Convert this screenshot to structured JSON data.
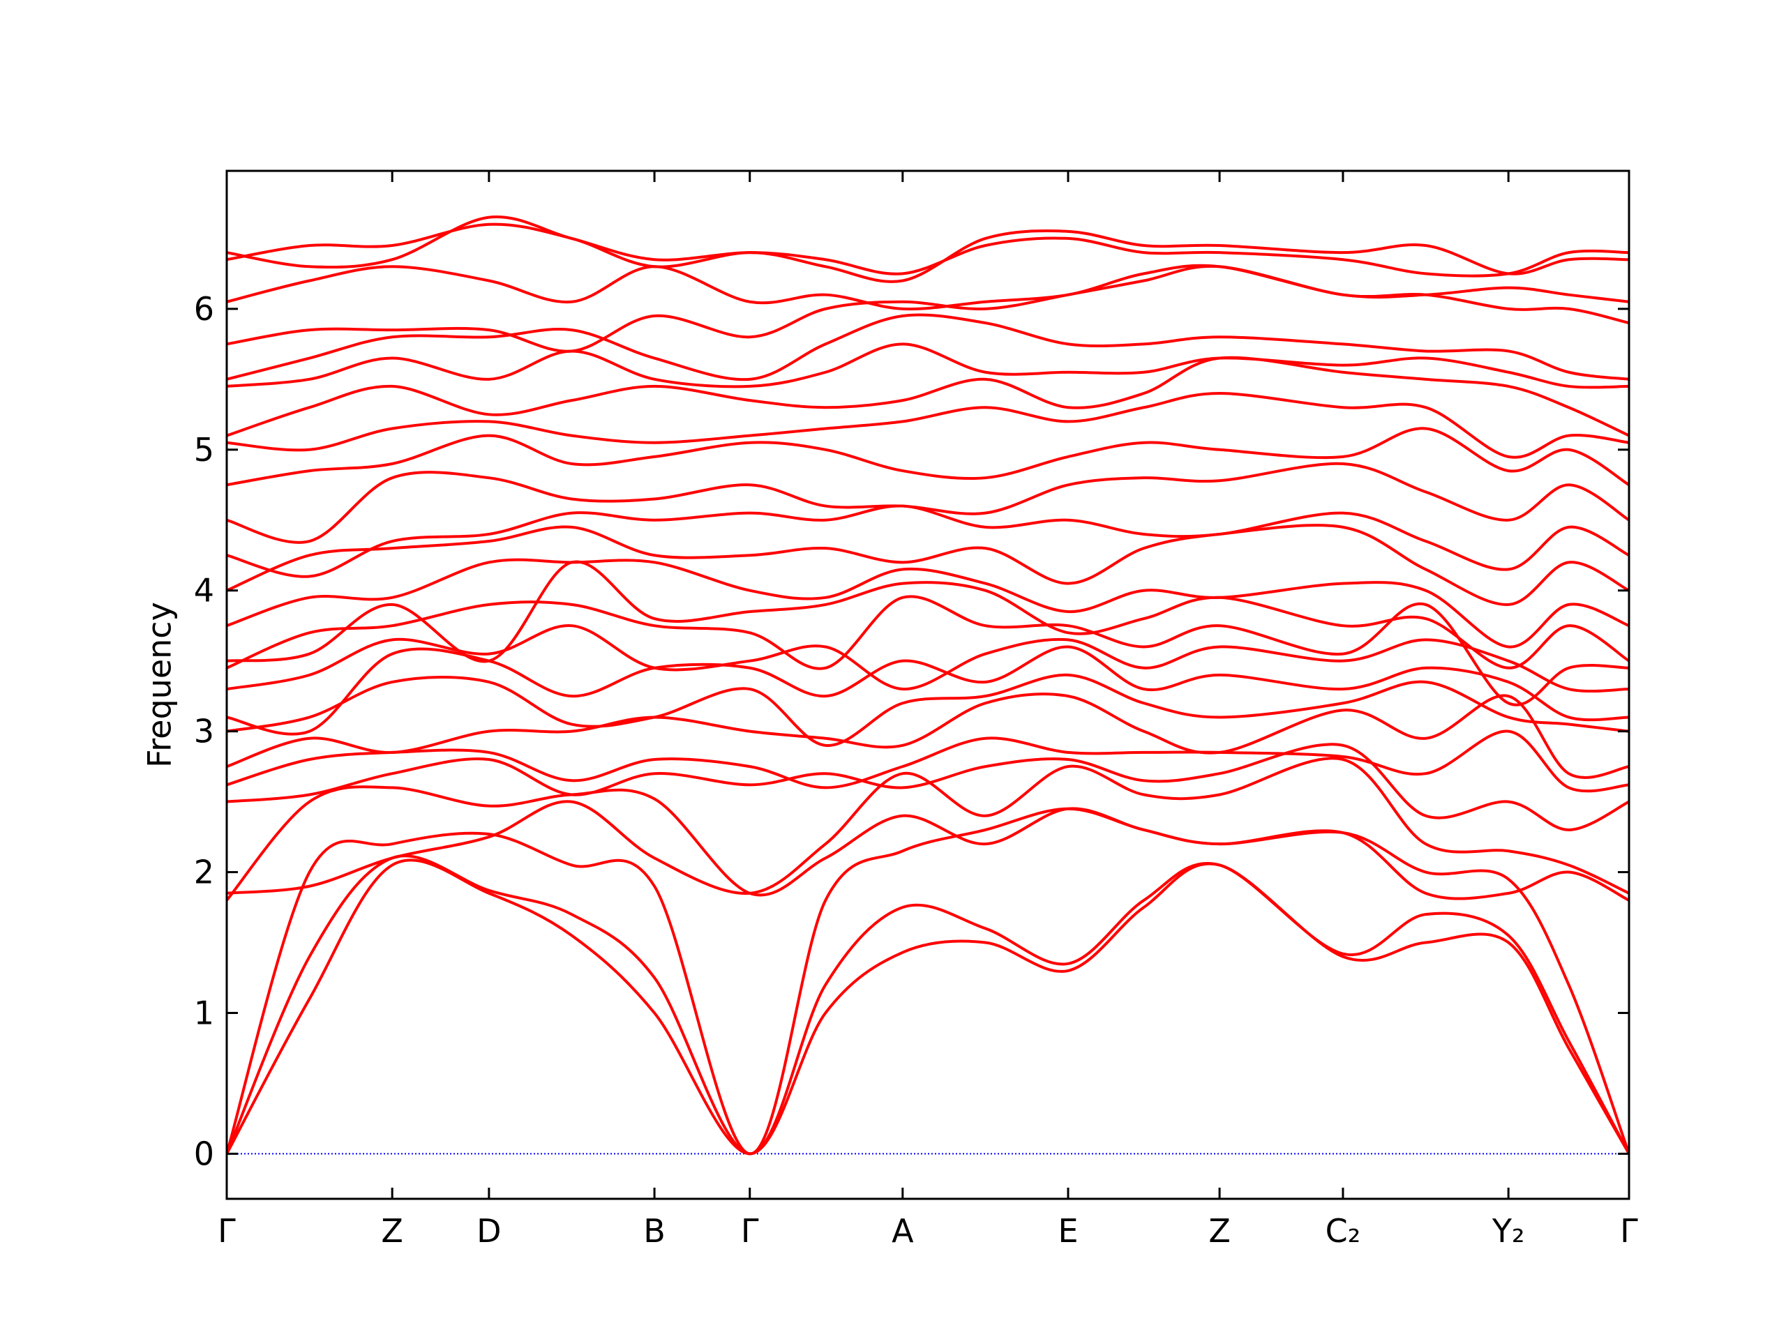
{
  "chart_data": {
    "type": "line",
    "ylabel": "Frequency",
    "x": [
      0,
      0.059,
      0.118,
      0.187,
      0.246,
      0.305,
      0.373,
      0.427,
      0.482,
      0.541,
      0.6,
      0.654,
      0.708,
      0.796,
      0.855,
      0.914,
      0.957,
      1.0
    ],
    "xlim": [
      0,
      1.0
    ],
    "xticks": [
      {
        "value": 0,
        "label": "Γ"
      },
      {
        "value": 0.118,
        "label": "Z"
      },
      {
        "value": 0.187,
        "label": "D"
      },
      {
        "value": 0.305,
        "label": "B"
      },
      {
        "value": 0.373,
        "label": "Γ"
      },
      {
        "value": 0.482,
        "label": "A"
      },
      {
        "value": 0.6,
        "label": "E"
      },
      {
        "value": 0.708,
        "label": "Z"
      },
      {
        "value": 0.796,
        "label": "C₂"
      },
      {
        "value": 0.914,
        "label": "Y₂"
      },
      {
        "value": 1.0,
        "label": "Γ"
      }
    ],
    "ylim": [
      -0.32,
      6.98
    ],
    "yticks": [
      0,
      1,
      2,
      3,
      4,
      5,
      6
    ],
    "color": "#ff0000",
    "hlines": [
      0
    ],
    "hline_color": "#0000ff",
    "series": [
      {
        "values": [
          0,
          1.1,
          2.05,
          1.85,
          1.55,
          1.0,
          0,
          1.0,
          1.43,
          1.5,
          1.3,
          1.75,
          2.05,
          1.4,
          1.5,
          1.5,
          0.75,
          0
        ]
      },
      {
        "values": [
          0,
          1.4,
          2.1,
          1.87,
          1.7,
          1.25,
          0,
          1.2,
          1.75,
          1.6,
          1.35,
          1.8,
          2.05,
          1.42,
          1.7,
          1.55,
          0.8,
          0
        ]
      },
      {
        "values": [
          0,
          2.0,
          2.2,
          2.27,
          2.05,
          1.9,
          0,
          1.8,
          2.15,
          2.3,
          2.45,
          2.3,
          2.2,
          2.28,
          2.0,
          1.95,
          1.2,
          0
        ]
      },
      {
        "values": [
          1.8,
          2.5,
          2.6,
          2.47,
          2.55,
          2.52,
          1.85,
          2.1,
          2.4,
          2.2,
          2.45,
          2.3,
          2.2,
          2.28,
          1.85,
          1.85,
          2.0,
          1.8
        ]
      },
      {
        "values": [
          1.85,
          1.9,
          2.1,
          2.25,
          2.5,
          2.1,
          1.85,
          2.2,
          2.7,
          2.4,
          2.75,
          2.55,
          2.55,
          2.8,
          2.2,
          2.15,
          2.05,
          1.85
        ]
      },
      {
        "values": [
          2.5,
          2.55,
          2.7,
          2.8,
          2.55,
          2.7,
          2.62,
          2.7,
          2.6,
          2.75,
          2.8,
          2.65,
          2.7,
          2.9,
          2.4,
          2.5,
          2.3,
          2.5
        ]
      },
      {
        "values": [
          2.62,
          2.8,
          2.85,
          2.85,
          2.65,
          2.8,
          2.75,
          2.6,
          2.75,
          2.95,
          2.85,
          2.85,
          2.85,
          2.82,
          2.7,
          3.0,
          2.6,
          2.62
        ]
      },
      {
        "values": [
          2.75,
          2.95,
          2.85,
          3.0,
          3.0,
          3.1,
          3.0,
          2.95,
          2.9,
          3.2,
          3.25,
          3.0,
          2.85,
          3.15,
          2.95,
          3.25,
          2.7,
          2.75
        ]
      },
      {
        "values": [
          3.0,
          3.1,
          3.35,
          3.35,
          3.05,
          3.1,
          3.3,
          2.9,
          3.2,
          3.25,
          3.4,
          3.2,
          3.1,
          3.2,
          3.35,
          3.1,
          3.05,
          3.0
        ]
      },
      {
        "values": [
          3.1,
          3.0,
          3.55,
          3.5,
          3.25,
          3.45,
          3.45,
          3.25,
          3.5,
          3.35,
          3.6,
          3.3,
          3.4,
          3.3,
          3.45,
          3.35,
          3.1,
          3.1
        ]
      },
      {
        "values": [
          3.3,
          3.4,
          3.65,
          3.55,
          3.75,
          3.45,
          3.5,
          3.6,
          3.3,
          3.55,
          3.65,
          3.45,
          3.6,
          3.5,
          3.65,
          3.5,
          3.3,
          3.3
        ]
      },
      {
        "values": [
          3.45,
          3.7,
          3.75,
          3.9,
          3.9,
          3.75,
          3.7,
          3.45,
          3.95,
          3.75,
          3.75,
          3.6,
          3.75,
          3.55,
          3.9,
          3.2,
          3.45,
          3.45
        ]
      },
      {
        "values": [
          3.5,
          3.55,
          3.9,
          3.5,
          4.2,
          3.8,
          3.85,
          3.9,
          4.05,
          4.0,
          3.7,
          3.8,
          3.95,
          3.75,
          3.8,
          3.45,
          3.75,
          3.5
        ]
      },
      {
        "values": [
          3.75,
          3.95,
          3.95,
          4.2,
          4.2,
          4.2,
          4.0,
          3.95,
          4.15,
          4.05,
          3.85,
          4.0,
          3.95,
          4.05,
          4.0,
          3.6,
          3.9,
          3.75
        ]
      },
      {
        "values": [
          4.0,
          4.25,
          4.3,
          4.35,
          4.45,
          4.25,
          4.25,
          4.3,
          4.2,
          4.3,
          4.05,
          4.3,
          4.4,
          4.45,
          4.15,
          3.9,
          4.2,
          4.0
        ]
      },
      {
        "values": [
          4.25,
          4.1,
          4.35,
          4.4,
          4.55,
          4.5,
          4.55,
          4.5,
          4.6,
          4.45,
          4.5,
          4.4,
          4.4,
          4.55,
          4.35,
          4.15,
          4.45,
          4.25
        ]
      },
      {
        "values": [
          4.5,
          4.35,
          4.8,
          4.8,
          4.65,
          4.65,
          4.75,
          4.6,
          4.6,
          4.55,
          4.75,
          4.8,
          4.78,
          4.9,
          4.7,
          4.5,
          4.75,
          4.5
        ]
      },
      {
        "values": [
          4.75,
          4.85,
          4.9,
          5.1,
          4.9,
          4.95,
          5.05,
          5.0,
          4.85,
          4.8,
          4.95,
          5.05,
          5.0,
          4.95,
          5.15,
          4.85,
          5.0,
          4.75
        ]
      },
      {
        "values": [
          5.05,
          5.0,
          5.15,
          5.2,
          5.1,
          5.05,
          5.1,
          5.15,
          5.2,
          5.3,
          5.2,
          5.3,
          5.4,
          5.3,
          5.3,
          4.95,
          5.1,
          5.05
        ]
      },
      {
        "values": [
          5.1,
          5.3,
          5.45,
          5.25,
          5.35,
          5.45,
          5.35,
          5.3,
          5.35,
          5.5,
          5.3,
          5.4,
          5.65,
          5.55,
          5.5,
          5.45,
          5.3,
          5.1
        ]
      },
      {
        "values": [
          5.45,
          5.5,
          5.65,
          5.5,
          5.7,
          5.5,
          5.45,
          5.55,
          5.75,
          5.55,
          5.55,
          5.55,
          5.65,
          5.6,
          5.65,
          5.55,
          5.45,
          5.45
        ]
      },
      {
        "values": [
          5.5,
          5.65,
          5.8,
          5.8,
          5.85,
          5.65,
          5.5,
          5.75,
          5.95,
          5.9,
          5.75,
          5.75,
          5.8,
          5.75,
          5.7,
          5.7,
          5.55,
          5.5
        ]
      },
      {
        "values": [
          5.75,
          5.85,
          5.85,
          5.85,
          5.7,
          5.95,
          5.8,
          6.0,
          6.05,
          6.0,
          6.1,
          6.2,
          6.3,
          6.1,
          6.1,
          6.0,
          6.0,
          5.9
        ]
      },
      {
        "values": [
          6.05,
          6.2,
          6.3,
          6.2,
          6.05,
          6.3,
          6.05,
          6.1,
          6.0,
          6.05,
          6.1,
          6.25,
          6.3,
          6.1,
          6.1,
          6.15,
          6.1,
          6.05
        ]
      },
      {
        "values": [
          6.35,
          6.45,
          6.45,
          6.6,
          6.5,
          6.3,
          6.4,
          6.3,
          6.2,
          6.5,
          6.55,
          6.45,
          6.45,
          6.4,
          6.45,
          6.25,
          6.35,
          6.35
        ]
      },
      {
        "values": [
          6.4,
          6.3,
          6.35,
          6.65,
          6.5,
          6.35,
          6.4,
          6.35,
          6.25,
          6.45,
          6.5,
          6.4,
          6.4,
          6.35,
          6.25,
          6.25,
          6.4,
          6.4
        ]
      }
    ]
  }
}
